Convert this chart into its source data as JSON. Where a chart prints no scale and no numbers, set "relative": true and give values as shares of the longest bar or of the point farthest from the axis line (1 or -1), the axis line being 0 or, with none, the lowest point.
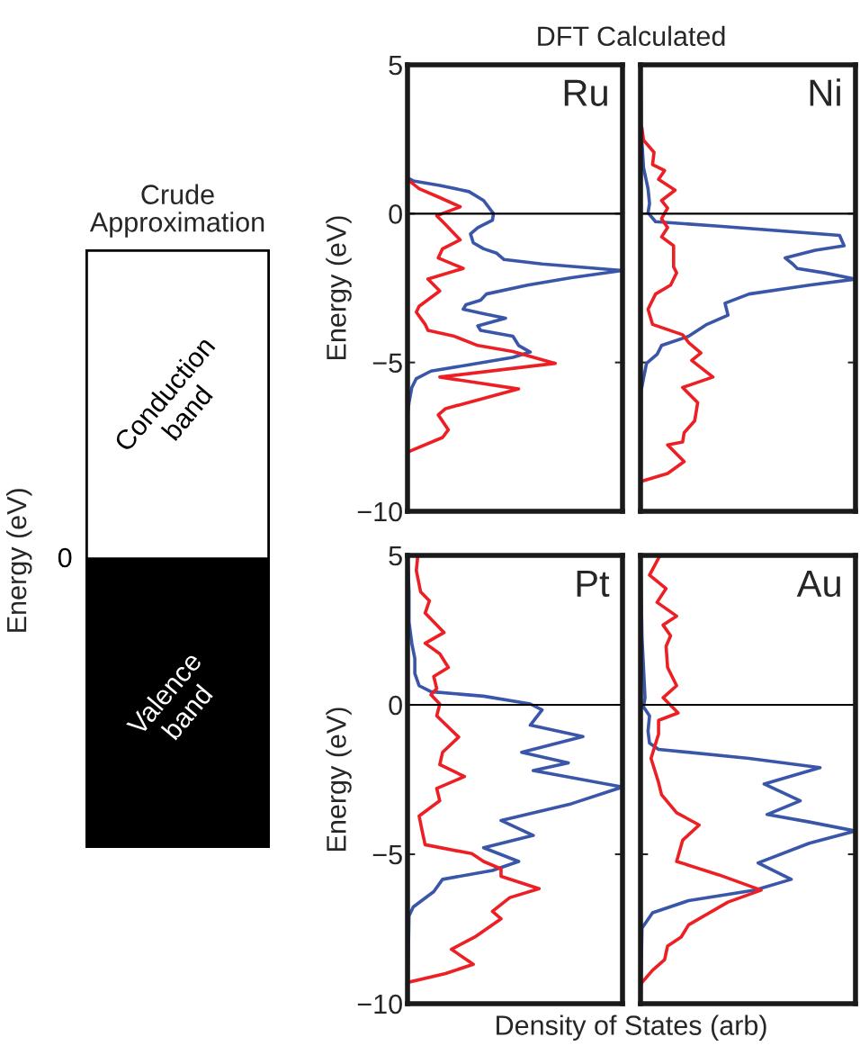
{
  "chart_data": [
    {
      "type": "other",
      "title": "Crude Approximation",
      "ylabel": "Energy (eV)",
      "annotations": [
        "Conduction band",
        "Valence band",
        "0"
      ]
    },
    {
      "type": "line",
      "title": "DFT Calculated",
      "ylabel": "Energy (eV)",
      "orientation": "horizontal",
      "relative": true,
      "ylim": [
        -10,
        5
      ],
      "yticks": [
        -10,
        -5,
        0,
        5
      ],
      "tick_labels": "y",
      "grid": false,
      "legend": false,
      "ref_lines": [
        {
          "axis": "y",
          "value": 0,
          "color": "#000000"
        }
      ],
      "annotations": [
        "Ru"
      ],
      "series": [
        {
          "color": "#3a56a8",
          "x": [
            5,
            1.2,
            1.1,
            0.95,
            0.74,
            0.44,
            0.0,
            -0.22,
            -0.47,
            -0.68,
            -0.98,
            -1.18,
            -1.33,
            -1.54,
            -1.69,
            -1.91,
            -2.15,
            -2.4,
            -2.7,
            -2.91,
            -3.06,
            -3.21,
            -3.36,
            -3.51,
            -3.77,
            -3.92,
            -4.12,
            -4.43,
            -4.65,
            -4.83,
            -5.08,
            -5.29,
            -5.54,
            -5.84,
            -6.35,
            -6.76,
            -10
          ],
          "values": [
            0,
            0,
            0.027,
            0.15,
            0.286,
            0.354,
            0.4,
            0.395,
            0.327,
            0.293,
            0.306,
            0.354,
            0.415,
            0.449,
            0.626,
            1.0,
            0.762,
            0.558,
            0.367,
            0.34,
            0.272,
            0.259,
            0.354,
            0.456,
            0.327,
            0.34,
            0.49,
            0.517,
            0.571,
            0.49,
            0.286,
            0.109,
            0.041,
            0.02,
            0.007,
            0,
            0
          ]
        },
        {
          "color": "#ec2024",
          "x": [
            1.15,
            0.84,
            0.54,
            0.23,
            -0.07,
            -0.37,
            -0.68,
            -0.88,
            -1.18,
            -1.49,
            -1.84,
            -2.2,
            -2.6,
            -3.11,
            -3.31,
            -3.72,
            -3.92,
            -4.12,
            -4.43,
            -4.63,
            -5.03,
            -5.49,
            -5.89,
            -6.55,
            -6.76,
            -7.26,
            -7.52,
            -7.97,
            -8.02,
            -10
          ],
          "values": [
            0,
            0.054,
            0.15,
            0.245,
            0.136,
            0.177,
            0.218,
            0.245,
            0.163,
            0.143,
            0.259,
            0.095,
            0.15,
            0.054,
            0.041,
            0.082,
            0.095,
            0.218,
            0.327,
            0.49,
            0.687,
            0.15,
            0.517,
            0.177,
            0.143,
            0.19,
            0.163,
            0.014,
            0,
            0
          ]
        }
      ]
    },
    {
      "type": "line",
      "orientation": "horizontal",
      "relative": true,
      "ylim": [
        -10,
        5
      ],
      "yticks": [
        -10,
        -5,
        0,
        5
      ],
      "tick_labels": false,
      "grid": false,
      "legend": false,
      "ref_lines": [
        {
          "axis": "y",
          "value": 0,
          "color": "#000000"
        }
      ],
      "annotations": [
        "Ni"
      ],
      "series": [
        {
          "color": "#3a56a8",
          "x": [
            5,
            2.87,
            1.55,
            0.84,
            0.34,
            0.03,
            -0.27,
            -0.42,
            -0.73,
            -1.08,
            -1.23,
            -1.49,
            -1.69,
            -1.84,
            -1.99,
            -2.2,
            -2.4,
            -2.7,
            -3.01,
            -3.41,
            -3.72,
            -4.12,
            -4.43,
            -4.73,
            -5.03,
            -5.54,
            -5.95,
            -10
          ],
          "values": [
            0,
            0.003,
            0.014,
            0.035,
            0.042,
            0.035,
            0.07,
            0.365,
            0.926,
            0.947,
            0.813,
            0.673,
            0.708,
            0.729,
            0.856,
            1.0,
            0.785,
            0.505,
            0.393,
            0.407,
            0.309,
            0.224,
            0.098,
            0.077,
            0.028,
            0.014,
            0.003,
            0
          ]
        },
        {
          "color": "#ec2024",
          "x": [
            2.97,
            2.87,
            2.47,
            2.06,
            1.65,
            1.45,
            1.15,
            0.79,
            0.44,
            0.19,
            -0.17,
            -0.47,
            -0.78,
            -1.08,
            -1.79,
            -1.99,
            -2.4,
            -2.7,
            -3.21,
            -3.72,
            -4.07,
            -4.33,
            -4.68,
            -4.93,
            -5.49,
            -5.84,
            -6.35,
            -6.96,
            -7.36,
            -7.67,
            -7.77,
            -8.33,
            -8.73,
            -8.99,
            -9.09
          ],
          "values": [
            0,
            0.007,
            0.014,
            0.063,
            0.056,
            0.112,
            0.084,
            0.161,
            0.098,
            0.126,
            0.098,
            0.126,
            0.098,
            0.154,
            0.154,
            0.168,
            0.14,
            0.07,
            0.035,
            0.056,
            0.196,
            0.224,
            0.281,
            0.238,
            0.337,
            0.196,
            0.266,
            0.252,
            0.203,
            0.196,
            0.126,
            0.203,
            0.126,
            0.007,
            0
          ]
        }
      ]
    },
    {
      "type": "line",
      "xlabel": "Density of States (arb)",
      "ylabel": "Energy (eV)",
      "orientation": "horizontal",
      "relative": true,
      "ylim": [
        -10,
        5
      ],
      "yticks": [
        -10,
        -5,
        0,
        5
      ],
      "tick_labels": "y",
      "grid": false,
      "legend": false,
      "ref_lines": [
        {
          "axis": "y",
          "value": 0,
          "color": "#000000"
        }
      ],
      "annotations": [
        "Pt"
      ],
      "series": [
        {
          "color": "#3a56a8",
          "x": [
            5,
            3.78,
            2.77,
            2.06,
            1.55,
            1.05,
            0.64,
            0.44,
            0.29,
            0.03,
            -0.17,
            -0.68,
            -1.06,
            -1.59,
            -1.94,
            -2.2,
            -2.75,
            -3.31,
            -3.87,
            -4.37,
            -4.78,
            -5.24,
            -5.54,
            -5.84,
            -6.25,
            -6.76,
            -7.06,
            -10
          ],
          "values": [
            0,
            0.007,
            0.007,
            0.02,
            0.034,
            0.034,
            0.054,
            0.109,
            0.354,
            0.571,
            0.626,
            0.571,
            0.816,
            0.531,
            0.748,
            0.585,
            1.0,
            0.762,
            0.435,
            0.585,
            0.354,
            0.517,
            0.395,
            0.163,
            0.122,
            0.027,
            0.007,
            0
          ]
        },
        {
          "color": "#ec2024",
          "x": [
            5,
            4.49,
            3.78,
            3.48,
            3.07,
            2.42,
            2.06,
            1.71,
            1.25,
            0.95,
            0.54,
            0.34,
            0.03,
            -0.37,
            -1.08,
            -1.59,
            -2.0,
            -2.4,
            -2.8,
            -3.21,
            -3.72,
            -4.22,
            -4.68,
            -4.98,
            -5.24,
            -5.49,
            -5.74,
            -6.15,
            -6.45,
            -6.91,
            -7.16,
            -7.77,
            -8.18,
            -8.68,
            -8.99,
            -9.29,
            -10
          ],
          "values": [
            0.048,
            0.041,
            0.061,
            0.102,
            0.082,
            0.17,
            0.082,
            0.15,
            0.19,
            0.122,
            0.136,
            0.109,
            0.15,
            0.136,
            0.238,
            0.163,
            0.15,
            0.265,
            0.136,
            0.15,
            0.054,
            0.068,
            0.082,
            0.299,
            0.354,
            0.435,
            0.435,
            0.612,
            0.476,
            0.395,
            0.435,
            0.313,
            0.204,
            0.306,
            0.177,
            0,
            0
          ]
        }
      ]
    },
    {
      "type": "line",
      "orientation": "horizontal",
      "relative": true,
      "ylim": [
        -10,
        5
      ],
      "yticks": [
        -10,
        -5,
        0,
        5
      ],
      "tick_labels": false,
      "grid": false,
      "legend": false,
      "ref_lines": [
        {
          "axis": "y",
          "value": 0,
          "color": "#000000"
        }
      ],
      "annotations": [
        "Au"
      ],
      "series": [
        {
          "color": "#3a56a8",
          "x": [
            5,
            2.26,
            0.24,
            -0.07,
            -0.37,
            -0.88,
            -1.28,
            -1.49,
            -1.79,
            -2.1,
            -2.65,
            -3.21,
            -3.67,
            -3.92,
            -4.22,
            -4.63,
            -5.29,
            -5.84,
            -6.2,
            -6.55,
            -6.96,
            -7.47,
            -10
          ],
          "values": [
            0,
            0.007,
            0.021,
            0.014,
            0.042,
            0.035,
            0.042,
            0.084,
            0.505,
            0.835,
            0.575,
            0.743,
            0.589,
            0.785,
            1.0,
            0.785,
            0.547,
            0.701,
            0.533,
            0.224,
            0.056,
            0.007,
            0
          ]
        },
        {
          "color": "#ec2024",
          "x": [
            5,
            4.34,
            3.89,
            3.43,
            2.97,
            2.67,
            2.31,
            1.96,
            1.25,
            0.64,
            0.24,
            -0.27,
            -0.52,
            -0.98,
            -1.79,
            -2.6,
            -3.01,
            -3.61,
            -4.02,
            -4.53,
            -5.24,
            -5.69,
            -6.2,
            -6.6,
            -7.36,
            -7.77,
            -8.07,
            -8.53,
            -8.88,
            -9.29,
            -9.39,
            -10
          ],
          "values": [
            0.091,
            0.042,
            0.119,
            0.077,
            0.168,
            0.105,
            0.14,
            0.119,
            0.126,
            0.168,
            0.105,
            0.175,
            0.084,
            0.084,
            0.049,
            0.084,
            0.098,
            0.168,
            0.273,
            0.196,
            0.168,
            0.365,
            0.561,
            0.407,
            0.224,
            0.189,
            0.126,
            0.112,
            0.056,
            0.007,
            0,
            0
          ]
        }
      ]
    }
  ]
}
